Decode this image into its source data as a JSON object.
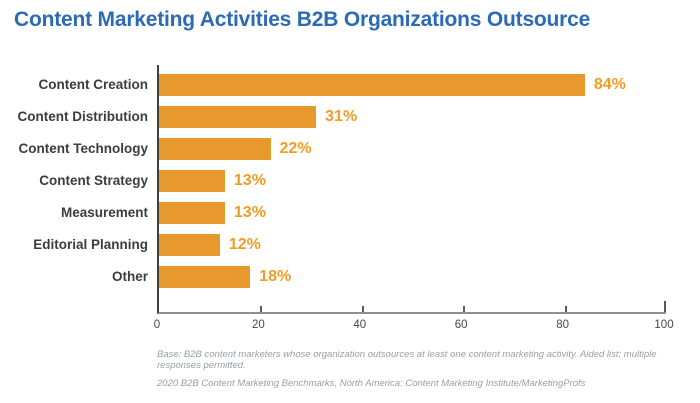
{
  "header": {
    "title": "Content Marketing Activities B2B Organizations Outsource"
  },
  "colors": {
    "title_blue": "#2B6AB5",
    "bar_orange": "#E8992D",
    "value_label_orange": "#F39C21",
    "category_text": "#3C3C3C",
    "axis_vertical_line": "#3F3F3F",
    "axis_horizontal_line": "#8F8F8F",
    "footnote_gray": "#999DA4",
    "background": "#FFFFFF"
  },
  "chart_data": {
    "type": "bar",
    "orientation": "horizontal",
    "title": "Content Marketing Activities B2B Organizations Outsource",
    "categories": [
      "Content Creation",
      "Content Distribution",
      "Content Technology",
      "Content Strategy",
      "Measurement",
      "Editorial Planning",
      "Other"
    ],
    "values": [
      84,
      31,
      22,
      13,
      13,
      12,
      18
    ],
    "value_labels": [
      "84%",
      "31%",
      "22%",
      "13%",
      "13%",
      "12%",
      "18%"
    ],
    "value_suffix": "%",
    "xlabel": "",
    "ylabel": "",
    "xlim": [
      0,
      100
    ],
    "xticks": [
      0,
      20,
      40,
      60,
      80,
      100
    ],
    "grid": false,
    "legend": "none",
    "bar_color": "#E8992D",
    "value_label_color": "#F39C21"
  },
  "footnotes": {
    "line1": "Base: B2B content marketers whose organization outsources at least one content marketing activity. Aided list; multiple responses permitted.",
    "line2": "2020 B2B Content Marketing Benchmarks, North America: Content Marketing Institute/MarketingProfs"
  }
}
